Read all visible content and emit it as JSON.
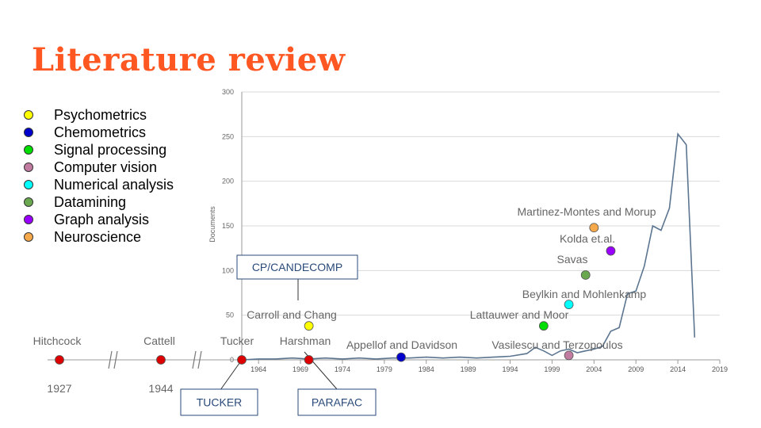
{
  "title": "Literature review",
  "legend": [
    {
      "label": "Psychometrics",
      "color": "#ffff00"
    },
    {
      "label": "Chemometrics",
      "color": "#0000cc"
    },
    {
      "label": "Signal processing",
      "color": "#00dd00"
    },
    {
      "label": "Computer vision",
      "color": "#c27ba0"
    },
    {
      "label": "Numerical analysis",
      "color": "#00ffff"
    },
    {
      "label": "Datamining",
      "color": "#6aa84f"
    },
    {
      "label": "Graph analysis",
      "color": "#9900ff"
    },
    {
      "label": "Neuroscience",
      "color": "#f6a94a"
    }
  ],
  "chart_data": {
    "type": "line",
    "ylabel": "Documents",
    "ylim": [
      0,
      300
    ],
    "yticks": [
      0,
      50,
      100,
      150,
      200,
      250,
      300
    ],
    "xlim": [
      1962,
      2019
    ],
    "xticks": [
      1964,
      1969,
      1974,
      1979,
      1984,
      1989,
      1994,
      1999,
      2004,
      2009,
      2014,
      2019
    ],
    "grid": true,
    "line_color": "#5b7590",
    "series": [
      {
        "x": [
          1962,
          1964,
          1966,
          1968,
          1970,
          1972,
          1974,
          1976,
          1978,
          1980,
          1982,
          1984,
          1986,
          1988,
          1990,
          1992,
          1994,
          1996,
          1997,
          1998,
          1999,
          2000,
          2001,
          2002,
          2003,
          2004,
          2005,
          2006,
          2007,
          2008,
          2009,
          2010,
          2011,
          2012,
          2013,
          2014,
          2015,
          2016
        ],
        "values": [
          0,
          1,
          1,
          2,
          1,
          2,
          1,
          2,
          1,
          2,
          2,
          3,
          2,
          3,
          2,
          3,
          4,
          7,
          14,
          10,
          5,
          10,
          12,
          8,
          10,
          12,
          15,
          32,
          36,
          74,
          77,
          105,
          150,
          145,
          170,
          253,
          241,
          25
        ]
      }
    ]
  },
  "timeline": {
    "years": [
      {
        "label": "1927",
        "year": 1927
      },
      {
        "label": "1944",
        "year": 1944
      }
    ],
    "points": [
      {
        "name": "Hitchcock",
        "color": "#dd0000"
      },
      {
        "name": "Cattell",
        "color": "#dd0000"
      },
      {
        "name": "Tucker",
        "color": "#dd0000",
        "year": 1962
      },
      {
        "name": "Harshman",
        "color": "#dd0000",
        "year": 1970
      },
      {
        "name": "Carroll and Chang",
        "color": "#ffff00",
        "year": 1970,
        "docs": 38
      },
      {
        "name": "Appellof and Davidson",
        "color": "#0000cc",
        "year": 1981,
        "docs": 3
      },
      {
        "name": "Vasilescu and Terzopoulos",
        "color": "#c27ba0",
        "year": 2001,
        "docs": 5
      },
      {
        "name": "Lattauwer and Moor",
        "color": "#00dd00",
        "year": 1998,
        "docs": 38
      },
      {
        "name": "Beylkin and Mohlenkamp",
        "color": "#00ffff",
        "year": 2001,
        "docs": 62
      },
      {
        "name": "Savas",
        "color": "#6aa84f",
        "year": 2003,
        "docs": 95
      },
      {
        "name": "Kolda et.al.",
        "color": "#9900ff",
        "year": 2006,
        "docs": 122
      },
      {
        "name": "Martinez-Montes and Morup",
        "color": "#f6a94a",
        "year": 2004,
        "docs": 148
      }
    ]
  },
  "boxes": {
    "cp": "CP/CANDECOMP",
    "tucker": "TUCKER",
    "parafac": "PARAFAC"
  }
}
